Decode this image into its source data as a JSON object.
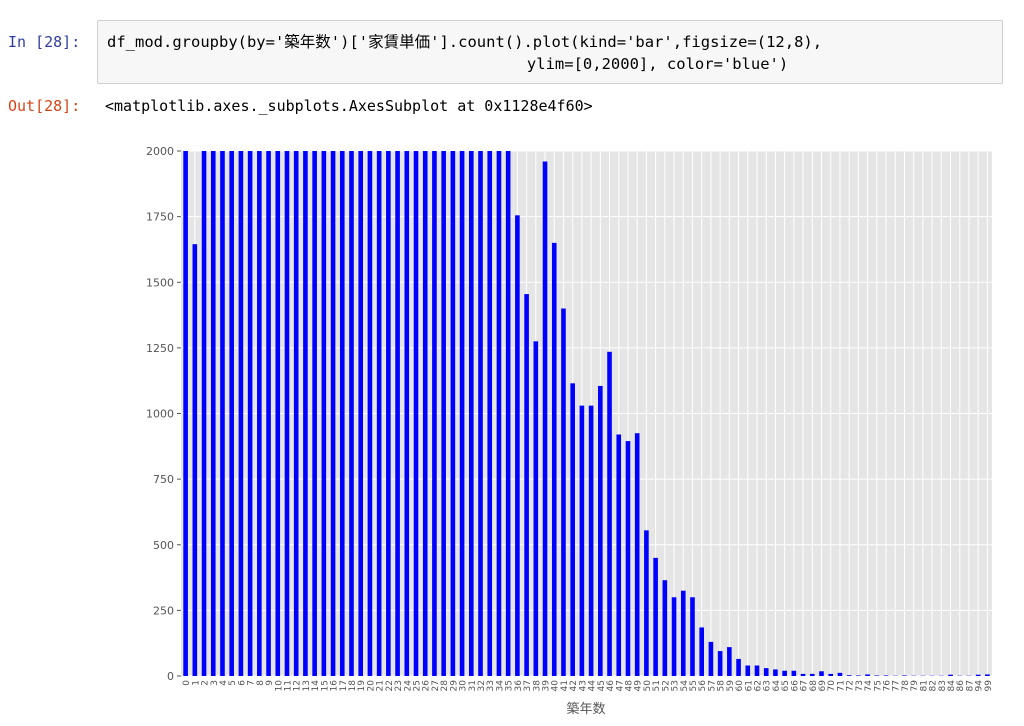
{
  "cell": {
    "prompt_in": "In [28]:",
    "code_lines": [
      "df_mod.groupby(by='築年数')['家賃単価'].count().plot(kind='bar',figsize=(12,8),",
      "                                             ylim=[0,2000], color='blue')"
    ],
    "prompt_out": "Out[28]:",
    "output": "<matplotlib.axes._subplots.AxesSubplot at 0x1128e4f60>"
  },
  "chart_data": {
    "type": "bar",
    "xlabel": "築年数",
    "categories": [
      "0",
      "1",
      "2",
      "3",
      "4",
      "5",
      "6",
      "7",
      "8",
      "9",
      "10",
      "11",
      "12",
      "13",
      "14",
      "15",
      "16",
      "17",
      "18",
      "19",
      "20",
      "21",
      "22",
      "23",
      "24",
      "25",
      "26",
      "27",
      "28",
      "29",
      "30",
      "31",
      "32",
      "33",
      "34",
      "35",
      "36",
      "37",
      "38",
      "39",
      "40",
      "41",
      "42",
      "43",
      "44",
      "45",
      "46",
      "47",
      "48",
      "49",
      "50",
      "51",
      "52",
      "53",
      "54",
      "55",
      "56",
      "57",
      "58",
      "59",
      "60",
      "61",
      "62",
      "63",
      "64",
      "65",
      "66",
      "67",
      "68",
      "69",
      "70",
      "71",
      "72",
      "73",
      "74",
      "75",
      "76",
      "77",
      "78",
      "79",
      "81",
      "82",
      "83",
      "84",
      "86",
      "87",
      "94",
      "99"
    ],
    "values": [
      2000,
      1645,
      2000,
      2000,
      2000,
      2000,
      2000,
      2000,
      2000,
      2000,
      2000,
      2000,
      2000,
      2000,
      2000,
      2000,
      2000,
      2000,
      2000,
      2000,
      2000,
      2000,
      2000,
      2000,
      2000,
      2000,
      2000,
      2000,
      2000,
      2000,
      2000,
      2000,
      2000,
      2000,
      2000,
      2000,
      1755,
      1455,
      1275,
      1960,
      1650,
      1400,
      1115,
      1030,
      1030,
      1105,
      1235,
      920,
      895,
      925,
      555,
      450,
      365,
      300,
      325,
      300,
      185,
      130,
      95,
      110,
      65,
      40,
      40,
      30,
      25,
      20,
      20,
      8,
      8,
      18,
      8,
      12,
      3,
      2,
      6,
      2,
      2,
      1,
      2,
      1,
      1,
      1,
      1,
      5,
      1,
      1,
      5,
      6
    ],
    "color": "#0000ff",
    "ylim": [
      0,
      2000
    ],
    "yticks": [
      0,
      250,
      500,
      750,
      1000,
      1250,
      1500,
      1750,
      2000
    ],
    "grid": true
  }
}
